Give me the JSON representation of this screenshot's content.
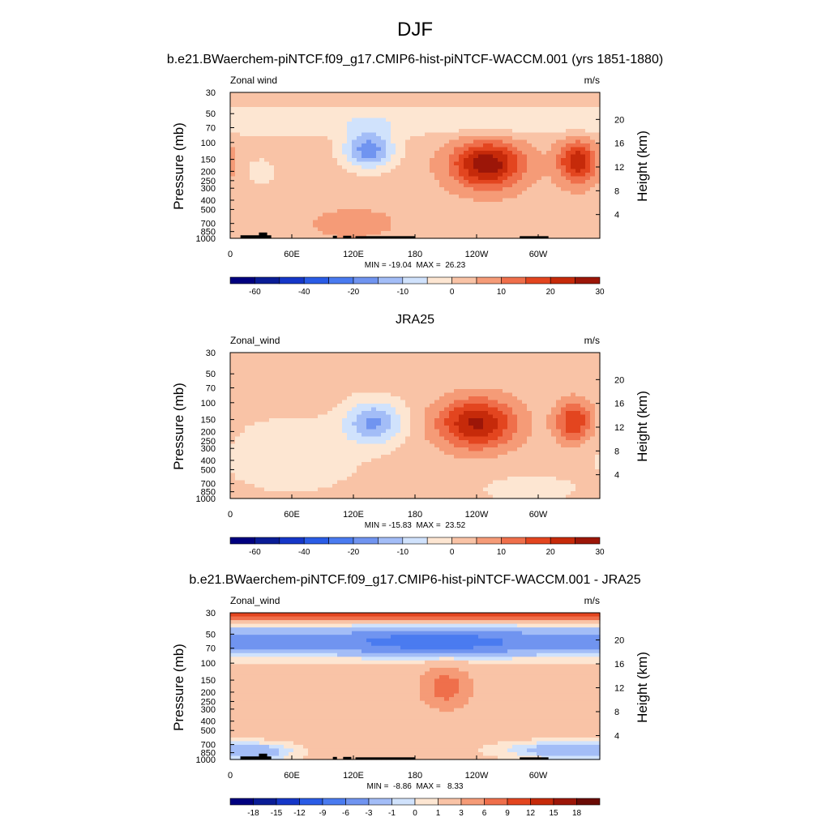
{
  "figure_title": "DJF",
  "chart_data": [
    {
      "type": "heatmap",
      "title": "b.e21.BWaerchem-piNTCF.f09_g17.CMIP6-hist-piNTCF-WACCM.001 (yrs 1851-1880)",
      "left_label": "Zonal wind",
      "units": "m/s",
      "ylabel": "Pressure (mb)",
      "y2label": "Height (km)",
      "xticks": [
        "0",
        "60E",
        "120E",
        "180",
        "120W",
        "60W"
      ],
      "yticks": [
        "30",
        "50",
        "70",
        "100",
        "150",
        "200",
        "250",
        "300",
        "400",
        "500",
        "700",
        "850",
        "1000"
      ],
      "y2ticks": [
        "20",
        "16",
        "12",
        "8",
        "4"
      ],
      "stats": "MIN = -19.04  MAX =  26.23",
      "min": -19.04,
      "max": 26.23,
      "colorbar_levels": [
        -70,
        -60,
        -50,
        -40,
        -30,
        -20,
        -15,
        -10,
        -5,
        0,
        5,
        10,
        15,
        20,
        25,
        30
      ],
      "colorbar_labels": [
        "-60",
        "-40",
        "-20",
        "-10",
        "0",
        "10",
        "20",
        "30"
      ],
      "features": [
        {
          "kind": "jet",
          "center_lon": 250,
          "center_p": 170,
          "peak": 26.2
        },
        {
          "kind": "jet",
          "center_lon": 335,
          "center_p": 160,
          "peak": 22
        },
        {
          "kind": "easterly",
          "center_lon": 135,
          "center_p": 120,
          "peak": -15
        },
        {
          "kind": "easterly_band",
          "p_range": [
            50,
            80
          ],
          "peak": -5
        }
      ]
    },
    {
      "type": "heatmap",
      "title": "JRA25",
      "left_label": "Zonal_wind",
      "units": "m/s",
      "ylabel": "Pressure (mb)",
      "y2label": "Height (km)",
      "xticks": [
        "0",
        "60E",
        "120E",
        "180",
        "120W",
        "60W"
      ],
      "yticks": [
        "30",
        "50",
        "70",
        "100",
        "150",
        "200",
        "250",
        "300",
        "400",
        "500",
        "700",
        "850",
        "1000"
      ],
      "y2ticks": [
        "20",
        "16",
        "12",
        "8",
        "4"
      ],
      "stats": "MIN = -15.83  MAX =  23.52",
      "min": -15.83,
      "max": 23.52,
      "colorbar_levels": [
        -70,
        -60,
        -50,
        -40,
        -30,
        -20,
        -15,
        -10,
        -5,
        0,
        5,
        10,
        15,
        20,
        25,
        30
      ],
      "colorbar_labels": [
        "-60",
        "-40",
        "-20",
        "-10",
        "0",
        "10",
        "20",
        "30"
      ],
      "features": [
        {
          "kind": "jet",
          "center_lon": 240,
          "center_p": 165,
          "peak": 23.5
        },
        {
          "kind": "jet",
          "center_lon": 335,
          "center_p": 160,
          "peak": 18
        },
        {
          "kind": "easterly",
          "center_lon": 140,
          "center_p": 160,
          "peak": -15.8
        }
      ]
    },
    {
      "type": "heatmap",
      "title": "b.e21.BWaerchem-piNTCF.f09_g17.CMIP6-hist-piNTCF-WACCM.001 - JRA25",
      "left_label": "Zonal_wind",
      "units": "m/s",
      "ylabel": "Pressure (mb)",
      "y2label": "Height (km)",
      "xticks": [
        "0",
        "60E",
        "120E",
        "180",
        "120W",
        "60W"
      ],
      "yticks": [
        "30",
        "50",
        "70",
        "100",
        "150",
        "200",
        "250",
        "300",
        "400",
        "500",
        "700",
        "850",
        "1000"
      ],
      "y2ticks": [
        "20",
        "16",
        "12",
        "8",
        "4"
      ],
      "stats": "MIN =  -8.86  MAX =   8.33",
      "min": -8.86,
      "max": 8.33,
      "colorbar_levels": [
        -21,
        -18,
        -15,
        -12,
        -9,
        -6,
        -3,
        -1,
        0,
        1,
        3,
        6,
        9,
        12,
        15,
        18,
        21
      ],
      "colorbar_labels": [
        "-18",
        "-15",
        "-12",
        "-9",
        "-6",
        "-3",
        "-1",
        "0",
        "1",
        "3",
        "6",
        "9",
        "12",
        "15",
        "18"
      ],
      "features": [
        {
          "kind": "positive_top_band",
          "p_range": [
            30,
            40
          ],
          "peak": 8.3
        },
        {
          "kind": "negative_band",
          "p_range": [
            45,
            90
          ],
          "peak": -8.9
        },
        {
          "kind": "positive_blob",
          "center_lon": 215,
          "center_p": 180,
          "peak": 8
        }
      ]
    }
  ],
  "colors": {
    "scale": [
      "#00007f",
      "#0a1c96",
      "#1537c8",
      "#2a5ce6",
      "#4a7bf0",
      "#7094f0",
      "#a3bdf7",
      "#d0e2fc",
      "#fde6d2",
      "#f9c3a6",
      "#f59b77",
      "#ef6f4b",
      "#e3451f",
      "#c62a0a",
      "#9c1608",
      "#6b0b05"
    ],
    "diff_scale": [
      "#00007f",
      "#0a1c96",
      "#1537c8",
      "#2a5ce6",
      "#4a7bf0",
      "#7094f0",
      "#a3bdf7",
      "#d0e2fc",
      "#fde6d2",
      "#f9c3a6",
      "#f59b77",
      "#ef6f4b",
      "#e3451f",
      "#c62a0a",
      "#9c1608",
      "#6b0b05"
    ],
    "terrain": "#000000"
  }
}
